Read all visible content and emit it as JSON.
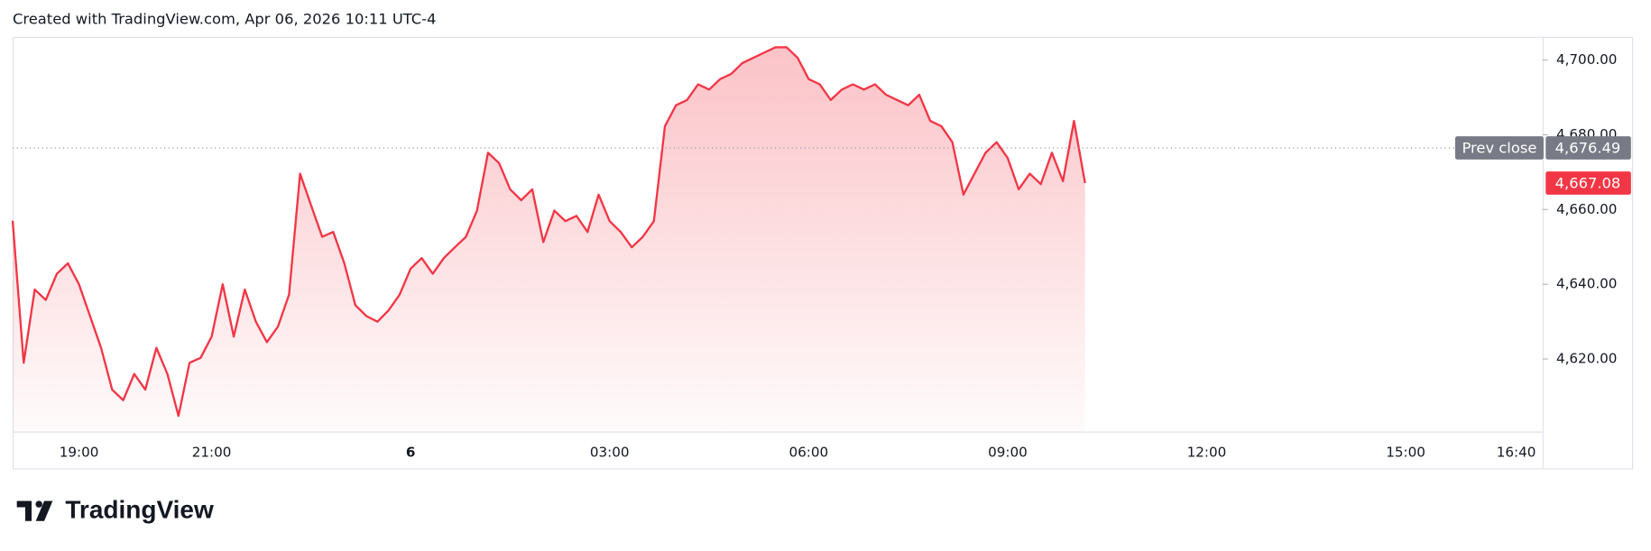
{
  "header": "Created with TradingView.com, Apr 06, 2026 10:11 UTC-4",
  "brand": "TradingView",
  "chart_data": {
    "type": "area",
    "color": "#f23645",
    "categories": [
      null,
      null,
      null,
      null,
      null,
      null,
      "19:00",
      null,
      null,
      null,
      null,
      null,
      null,
      null,
      null,
      null,
      null,
      null,
      "21:00",
      null,
      null,
      null,
      null,
      null,
      null,
      null,
      null,
      null,
      null,
      null,
      null,
      null,
      null,
      null,
      null,
      null,
      "6",
      null,
      null,
      null,
      null,
      null,
      null,
      null,
      null,
      null,
      null,
      null,
      null,
      null,
      null,
      null,
      null,
      null,
      "03:00",
      null,
      null,
      null,
      null,
      null,
      null,
      null,
      null,
      null,
      null,
      null,
      null,
      null,
      null,
      null,
      null,
      null,
      "06:00",
      null,
      null,
      null,
      null,
      null,
      null,
      null,
      null,
      null,
      null,
      null,
      null,
      null,
      null,
      null,
      null,
      null,
      "09:00",
      null,
      null,
      null,
      null,
      null,
      null,
      null,
      null,
      null,
      null,
      null,
      null,
      null,
      null,
      null,
      null,
      null,
      "12:00",
      null,
      null,
      null,
      null,
      null,
      null,
      null,
      null,
      null,
      null,
      null,
      null,
      null,
      null,
      null,
      null,
      null,
      "15:00",
      null,
      null,
      null,
      null,
      null,
      null,
      null,
      null,
      null,
      "16:40",
      null
    ],
    "values": [
      4657,
      4619,
      4638.6,
      4635.8,
      4642.8,
      4645.6,
      4640,
      4631.5,
      4623,
      4611.8,
      4609,
      4616,
      4611.8,
      4623,
      4616,
      4604.8,
      4619,
      4620.3,
      4626,
      4640,
      4626,
      4638.6,
      4630,
      4624.5,
      4628.7,
      4637.2,
      4669.6,
      4661.1,
      4652.7,
      4654,
      4645.6,
      4634.4,
      4631.5,
      4630,
      4633,
      4637.2,
      4644.2,
      4647,
      4642.8,
      4647,
      4649.9,
      4652.7,
      4659.7,
      4675.2,
      4672.4,
      4665.4,
      4662.5,
      4665.4,
      4651.3,
      4659.7,
      4656.9,
      4658.3,
      4654,
      4664,
      4656.9,
      4654,
      4649.9,
      4652.7,
      4656.9,
      4682.3,
      4687.9,
      4689.3,
      4693.5,
      4692.1,
      4694.9,
      4696.3,
      4699.2,
      4700.6,
      4702,
      4703.4,
      4703.4,
      4700.6,
      4694.9,
      4693.5,
      4689.3,
      4692.1,
      4693.5,
      4692.1,
      4693.5,
      4690.7,
      4689.3,
      4687.9,
      4690.7,
      4683.7,
      4682.3,
      4678,
      4664,
      4669.6,
      4675.2,
      4678,
      4673.8,
      4665.4,
      4669.6,
      4666.8,
      4675.2,
      4667.6,
      4683.7,
      4667.08,
      null,
      null,
      null,
      null,
      null,
      null,
      null,
      null,
      null,
      null,
      null,
      null,
      null,
      null,
      null,
      null,
      null,
      null,
      null,
      null,
      null,
      null,
      null,
      null,
      null,
      null,
      null,
      null,
      null,
      null,
      null,
      null,
      null,
      null,
      null,
      null,
      null,
      null,
      null,
      null
    ],
    "ylim": [
      4600.6,
      4706.2
    ],
    "yticks": [
      {
        "value": 4620,
        "label": "4,620.00"
      },
      {
        "value": 4640,
        "label": "4,640.00"
      },
      {
        "value": 4660,
        "label": "4,660.00"
      },
      {
        "value": 4680,
        "label": "4,680.00"
      },
      {
        "value": 4700,
        "label": "4,700.00"
      }
    ],
    "prev_close": {
      "name": "Prev close",
      "value": 4676.49,
      "label": "4,676.49"
    },
    "last_price": {
      "value": 4667.08,
      "label": "4,667.08"
    }
  }
}
